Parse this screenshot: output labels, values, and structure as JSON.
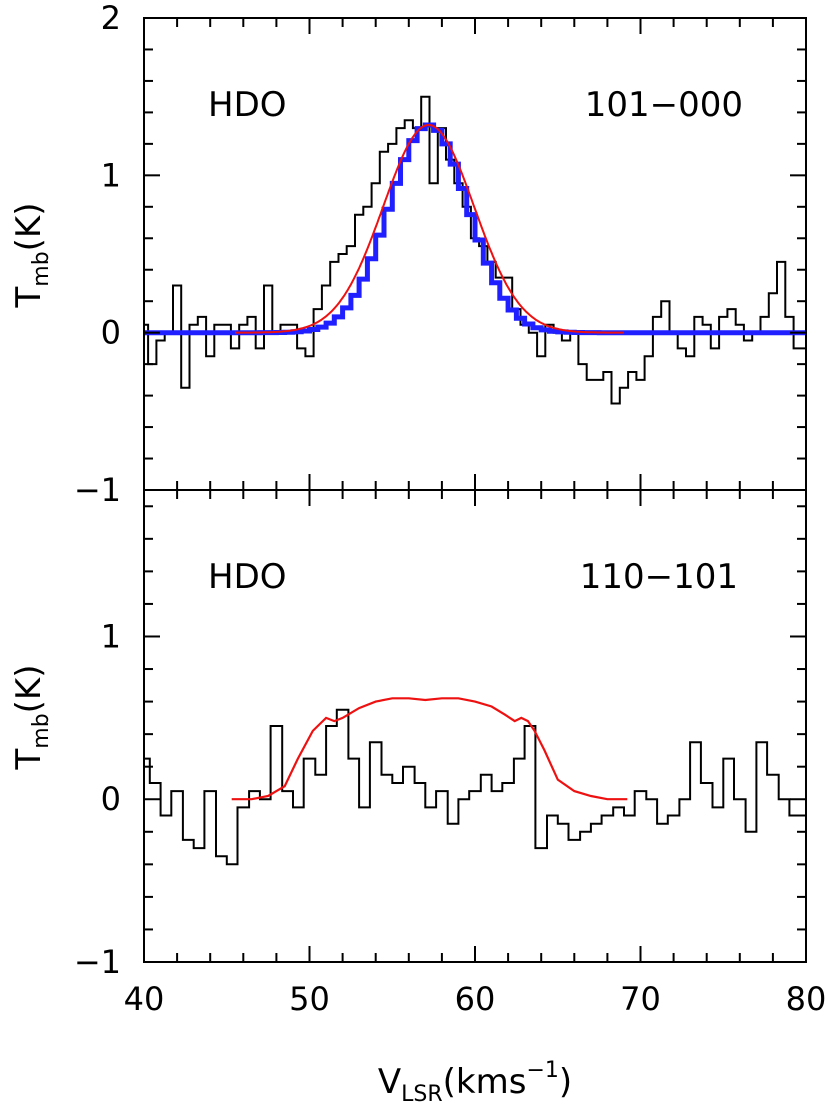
{
  "chart_data": [
    {
      "type": "line",
      "panel": "top",
      "species_label": "HDO",
      "transition_label": "101−000",
      "ylabel": "T",
      "ylabel_sub": "mb",
      "ylabel_unit": "(K)",
      "xlim": [
        40,
        80
      ],
      "ylim": [
        -1,
        2
      ],
      "y_ticks": [
        "2",
        "1",
        "0",
        "−1"
      ],
      "series": [
        {
          "style": "step",
          "color": "#000000",
          "x": [
            40,
            40.5,
            41,
            41.5,
            42,
            42.5,
            43,
            43.5,
            44,
            44.5,
            45,
            45.5,
            46,
            46.5,
            47,
            47.5,
            48,
            48.5,
            49,
            49.5,
            50,
            50.5,
            51,
            51.5,
            52,
            52.5,
            53,
            53.5,
            54,
            54.5,
            55,
            55.5,
            56,
            56.5,
            57,
            57.5,
            58,
            58.5,
            59,
            59.5,
            60,
            60.5,
            61,
            61.5,
            62,
            62.5,
            63,
            63.5,
            64,
            64.5,
            65,
            65.5,
            66,
            66.5,
            67,
            67.5,
            68,
            68.5,
            69,
            69.5,
            70,
            70.5,
            71,
            71.5,
            72,
            72.5,
            73,
            73.5,
            74,
            74.5,
            75,
            75.5,
            76,
            76.5,
            77,
            77.5,
            78,
            78.5,
            79,
            79.5
          ],
          "y": [
            0.05,
            -0.2,
            -0.05,
            0.0,
            0.3,
            -0.35,
            0.05,
            0.1,
            -0.15,
            0.05,
            0.05,
            -0.1,
            0.05,
            0.1,
            -0.1,
            0.3,
            0.0,
            0.05,
            0.05,
            -0.1,
            -0.15,
            0.15,
            0.3,
            0.45,
            0.5,
            0.55,
            0.75,
            0.8,
            0.95,
            1.15,
            1.2,
            1.3,
            1.35,
            1.3,
            1.5,
            0.95,
            1.3,
            1.1,
            0.95,
            0.8,
            0.6,
            0.55,
            0.45,
            0.35,
            0.35,
            0.15,
            0.05,
            0.0,
            -0.15,
            0.05,
            0.0,
            -0.05,
            0.0,
            -0.2,
            -0.3,
            -0.3,
            -0.25,
            -0.45,
            -0.35,
            -0.25,
            -0.3,
            -0.15,
            0.1,
            0.2,
            0.0,
            -0.1,
            -0.15,
            0.1,
            0.05,
            -0.1,
            0.1,
            0.15,
            0.05,
            -0.05,
            0.0,
            0.1,
            0.25,
            0.45,
            0.1,
            -0.1
          ]
        },
        {
          "style": "step-model",
          "color": "#1f1fff",
          "mu": 57.2,
          "amplitude": 1.32,
          "sigma": 2.4,
          "x_range": [
            40,
            80
          ],
          "step": 0.5
        },
        {
          "style": "line-model",
          "color": "#ee1111",
          "mu": 57.2,
          "amplitude": 1.32,
          "sigma": 2.75,
          "x_range": [
            45.5,
            69
          ]
        }
      ]
    },
    {
      "type": "line",
      "panel": "bottom",
      "species_label": "HDO",
      "transition_label": "110−101",
      "ylabel": "T",
      "ylabel_sub": "mb",
      "ylabel_unit": "(K)",
      "xlabel": "V",
      "xlabel_sub": "LSR",
      "xlabel_unit": "(kms",
      "xlabel_sup": "−1",
      "xlabel_close": ")",
      "xlim": [
        40,
        80
      ],
      "ylim": [
        -1,
        1.9
      ],
      "y_ticks": [
        "1",
        "0",
        "−1"
      ],
      "x_ticks": [
        "40",
        "50",
        "60",
        "70",
        "80"
      ],
      "series": [
        {
          "style": "step",
          "color": "#000000",
          "x": [
            40,
            40.7,
            41.3,
            42,
            42.7,
            43.3,
            44,
            44.7,
            45.3,
            46,
            46.7,
            47.3,
            48,
            48.7,
            49.3,
            50,
            50.7,
            51.3,
            52,
            52.7,
            53.3,
            54,
            54.7,
            55.3,
            56,
            56.7,
            57.3,
            58,
            58.7,
            59.3,
            60,
            60.7,
            61.3,
            62,
            62.7,
            63.3,
            64,
            64.7,
            65.3,
            66,
            66.7,
            67.3,
            68,
            68.7,
            69.3,
            70,
            70.7,
            71.3,
            72,
            72.7,
            73.3,
            74,
            74.7,
            75.3,
            76,
            76.7,
            77.3,
            78,
            78.7,
            79.3
          ],
          "y": [
            0.25,
            0.1,
            -0.1,
            0.05,
            -0.25,
            -0.3,
            0.05,
            -0.35,
            -0.4,
            -0.05,
            0.05,
            0.0,
            0.45,
            0.05,
            -0.05,
            0.25,
            0.15,
            0.45,
            0.55,
            0.25,
            -0.05,
            0.35,
            0.15,
            0.1,
            0.2,
            0.1,
            -0.05,
            0.05,
            -0.15,
            0.0,
            0.05,
            0.15,
            0.05,
            0.1,
            0.25,
            0.45,
            -0.3,
            -0.1,
            -0.15,
            -0.25,
            -0.2,
            -0.15,
            -0.1,
            -0.05,
            -0.1,
            0.05,
            0.0,
            -0.15,
            -0.1,
            0.0,
            0.35,
            0.1,
            -0.05,
            0.25,
            0.0,
            -0.2,
            0.35,
            0.15,
            0.0,
            -0.1
          ]
        },
        {
          "style": "line",
          "color": "#ee1111",
          "x": [
            45.3,
            46.5,
            47.5,
            48.5,
            49.3,
            50.2,
            51.0,
            51.5,
            52.0,
            53.0,
            54.0,
            55.0,
            56.0,
            57.0,
            58.0,
            59.0,
            60.0,
            61.0,
            61.8,
            62.4,
            62.8,
            63.2,
            63.6,
            64.2,
            65.0,
            66.0,
            67.0,
            68.0,
            69.2
          ],
          "y": [
            0.0,
            0.0,
            0.02,
            0.08,
            0.25,
            0.42,
            0.5,
            0.48,
            0.5,
            0.56,
            0.6,
            0.62,
            0.62,
            0.61,
            0.62,
            0.62,
            0.6,
            0.57,
            0.52,
            0.48,
            0.5,
            0.48,
            0.42,
            0.3,
            0.12,
            0.05,
            0.02,
            0.0,
            0.0
          ]
        }
      ]
    }
  ]
}
